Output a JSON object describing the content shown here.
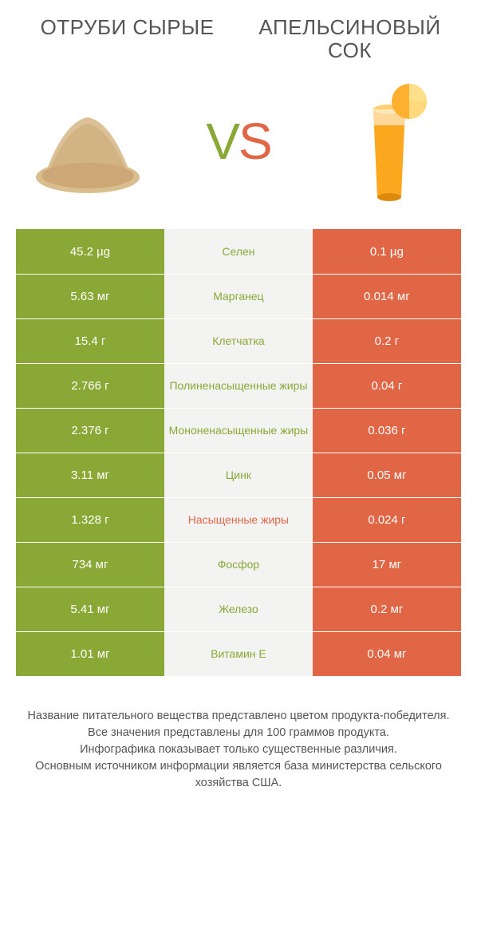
{
  "left_title": "ОТРУБИ СЫРЫЕ",
  "right_title": "АПЕЛЬСИНОВЫЙ СОК",
  "vs": {
    "v": "V",
    "s": "S"
  },
  "colors": {
    "left": "#8aa836",
    "right": "#e06646",
    "middle_bg": "#f3f3f2",
    "page_bg": "#ffffff",
    "text": "#555555"
  },
  "table": {
    "columns": [
      "left_value",
      "nutrient",
      "right_value"
    ],
    "rows": [
      {
        "left": "45.2 µg",
        "label": "Селен",
        "right": "0.1 µg",
        "winner": "left"
      },
      {
        "left": "5.63 мг",
        "label": "Марганец",
        "right": "0.014 мг",
        "winner": "left"
      },
      {
        "left": "15.4 г",
        "label": "Клетчатка",
        "right": "0.2 г",
        "winner": "left"
      },
      {
        "left": "2.766 г",
        "label": "Полиненасыщенные жиры",
        "right": "0.04 г",
        "winner": "left"
      },
      {
        "left": "2.376 г",
        "label": "Мононенасыщенные жиры",
        "right": "0.036 г",
        "winner": "left"
      },
      {
        "left": "3.11 мг",
        "label": "Цинк",
        "right": "0.05 мг",
        "winner": "left"
      },
      {
        "left": "1.328 г",
        "label": "Насыщенные жиры",
        "right": "0.024 г",
        "winner": "right"
      },
      {
        "left": "734 мг",
        "label": "Фосфор",
        "right": "17 мг",
        "winner": "left"
      },
      {
        "left": "5.41 мг",
        "label": "Железо",
        "right": "0.2 мг",
        "winner": "left"
      },
      {
        "left": "1.01 мг",
        "label": "Витамин E",
        "right": "0.04 мг",
        "winner": "left"
      }
    ]
  },
  "footnote": "Название питательного вещества представлено цветом продукта-победителя.\nВсе значения представлены для 100 граммов продукта.\nИнфографика показывает только существенные различия.\nОсновным источником информации является база министерства сельского хозяйства США."
}
